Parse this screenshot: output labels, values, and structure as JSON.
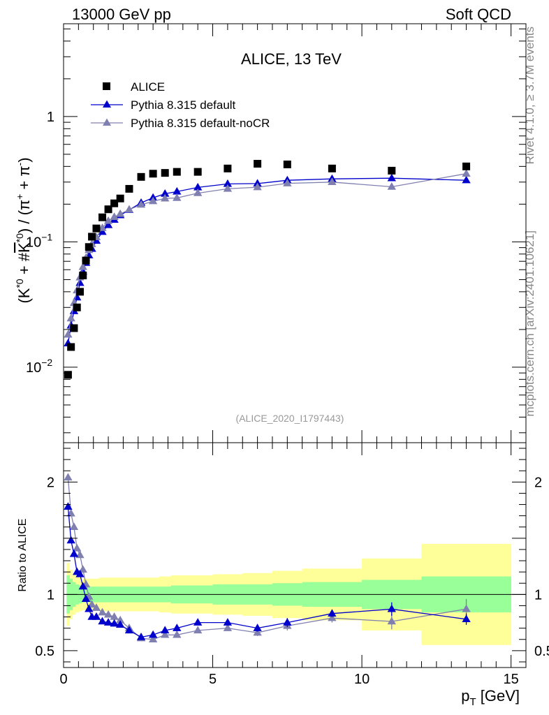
{
  "header": {
    "left": "13000 GeV pp",
    "right": "Soft QCD"
  },
  "side": {
    "top": "Rivet 4.1.0, ≥ 3.7M events",
    "bottom": "mcplots.cern.ch [arXiv:2401.10621]"
  },
  "colors": {
    "data": "#000000",
    "default": "#0000cc",
    "nocr": "#8080b0",
    "band_inner": "#99ff99",
    "band_outer": "#ffff99"
  },
  "chart_data": [
    {
      "type": "scatter",
      "title": "ALICE, 13 TeV",
      "watermark": "(ALICE_2020_I1797443)",
      "ylabel_parts": [
        "(K",
        "*0",
        " + #",
        "K",
        "*0",
        ") / (π",
        "+",
        " + π",
        "-",
        ")"
      ],
      "yscale": "log",
      "ylim": [
        0.0025,
        5.5
      ],
      "xlim": [
        0,
        15.5
      ],
      "yticks": [
        {
          "v": 1,
          "label": "1"
        },
        {
          "v": 0.1,
          "base": "10",
          "exp": "−1"
        },
        {
          "v": 0.01,
          "base": "10",
          "exp": "−2"
        }
      ],
      "legend": [
        {
          "name": "ALICE",
          "marker": "square"
        },
        {
          "name": "Pythia 8.315 default",
          "marker": "triangle"
        },
        {
          "name": "Pythia 8.315 default-noCR",
          "marker": "triangle"
        }
      ],
      "data_points": {
        "x": [
          0.15,
          0.25,
          0.35,
          0.45,
          0.55,
          0.65,
          0.75,
          0.85,
          0.95,
          1.1,
          1.3,
          1.5,
          1.7,
          1.9,
          2.2,
          2.6,
          3.0,
          3.4,
          3.8,
          4.5,
          5.5,
          6.5,
          7.5,
          9.0,
          11.0,
          13.5
        ],
        "y": [
          0.0087,
          0.0145,
          0.0205,
          0.03,
          0.04,
          0.054,
          0.071,
          0.091,
          0.11,
          0.128,
          0.157,
          0.182,
          0.203,
          0.222,
          0.265,
          0.33,
          0.35,
          0.355,
          0.362,
          0.362,
          0.385,
          0.42,
          0.415,
          0.385,
          0.37,
          0.4
        ]
      },
      "series": [
        {
          "name": "Pythia 8.315 default",
          "x": [
            0.15,
            0.25,
            0.35,
            0.45,
            0.55,
            0.65,
            0.75,
            0.85,
            0.95,
            1.1,
            1.3,
            1.5,
            1.7,
            1.9,
            2.2,
            2.6,
            3.0,
            3.4,
            3.8,
            4.5,
            5.5,
            6.5,
            7.5,
            9.0,
            11.0,
            13.5
          ],
          "y": [
            0.0155,
            0.0215,
            0.028,
            0.036,
            0.047,
            0.058,
            0.068,
            0.078,
            0.088,
            0.102,
            0.12,
            0.136,
            0.15,
            0.163,
            0.18,
            0.205,
            0.225,
            0.242,
            0.252,
            0.272,
            0.29,
            0.292,
            0.31,
            0.318,
            0.322,
            0.31
          ]
        },
        {
          "name": "Pythia 8.315 default-noCR",
          "x": [
            0.15,
            0.25,
            0.35,
            0.45,
            0.55,
            0.65,
            0.75,
            0.85,
            0.95,
            1.1,
            1.3,
            1.5,
            1.7,
            1.9,
            2.2,
            2.6,
            3.0,
            3.4,
            3.8,
            4.5,
            5.5,
            6.5,
            7.5,
            9.0,
            11.0,
            13.5
          ],
          "y": [
            0.0182,
            0.0245,
            0.0325,
            0.041,
            0.052,
            0.063,
            0.0745,
            0.086,
            0.096,
            0.109,
            0.129,
            0.147,
            0.158,
            0.167,
            0.181,
            0.198,
            0.211,
            0.222,
            0.224,
            0.245,
            0.265,
            0.273,
            0.293,
            0.3,
            0.275,
            0.35
          ]
        }
      ]
    },
    {
      "type": "scatter",
      "ylabel": "Ratio to ALICE",
      "xlabel_main": "p",
      "xlabel_sub": "T",
      "xlabel_unit": " [GeV]",
      "ylim": [
        0.35,
        2.35
      ],
      "xlim": [
        0,
        15.5
      ],
      "xticks": [
        0,
        5,
        10,
        15
      ],
      "yticks": [
        0.5,
        1,
        2
      ],
      "bands": {
        "edges": [
          0.1,
          0.2,
          0.3,
          0.4,
          0.5,
          0.6,
          0.7,
          0.8,
          0.9,
          1.0,
          1.2,
          1.4,
          1.6,
          1.8,
          2.0,
          2.4,
          2.8,
          3.2,
          3.6,
          4.0,
          5.0,
          6.0,
          7.0,
          8.0,
          10.0,
          12.0,
          15.0
        ],
        "inner": [
          0.17,
          0.14,
          0.11,
          0.09,
          0.08,
          0.07,
          0.07,
          0.07,
          0.07,
          0.07,
          0.07,
          0.07,
          0.07,
          0.07,
          0.07,
          0.07,
          0.07,
          0.07,
          0.08,
          0.08,
          0.09,
          0.09,
          0.1,
          0.11,
          0.13,
          0.16
        ],
        "outer": [
          0.28,
          0.22,
          0.18,
          0.16,
          0.15,
          0.14,
          0.14,
          0.14,
          0.14,
          0.14,
          0.15,
          0.15,
          0.15,
          0.15,
          0.15,
          0.15,
          0.15,
          0.16,
          0.17,
          0.17,
          0.18,
          0.19,
          0.21,
          0.23,
          0.32,
          0.45
        ]
      },
      "series": [
        {
          "name": "Pythia 8.315 default",
          "x": [
            0.15,
            0.25,
            0.35,
            0.45,
            0.55,
            0.65,
            0.75,
            0.85,
            0.95,
            1.1,
            1.3,
            1.5,
            1.7,
            1.9,
            2.2,
            2.6,
            3.0,
            3.4,
            3.8,
            4.5,
            5.5,
            6.5,
            7.5,
            9.0,
            11.0,
            13.5
          ],
          "y": [
            1.78,
            1.48,
            1.36,
            1.2,
            1.18,
            1.07,
            0.96,
            0.87,
            0.8,
            0.8,
            0.76,
            0.75,
            0.74,
            0.73,
            0.68,
            0.62,
            0.64,
            0.68,
            0.7,
            0.75,
            0.75,
            0.7,
            0.75,
            0.83,
            0.87,
            0.78
          ],
          "err": [
            0,
            0,
            0,
            0,
            0,
            0,
            0,
            0,
            0,
            0,
            0,
            0,
            0,
            0,
            0,
            0,
            0,
            0,
            0,
            0,
            0,
            0.03,
            0.04,
            0.03,
            0.06,
            0.05
          ]
        },
        {
          "name": "Pythia 8.315 default-noCR",
          "x": [
            0.15,
            0.25,
            0.35,
            0.45,
            0.55,
            0.65,
            0.75,
            0.85,
            0.95,
            1.1,
            1.3,
            1.5,
            1.7,
            1.9,
            2.2,
            2.6,
            3.0,
            3.4,
            3.8,
            4.5,
            5.5,
            6.5,
            7.5,
            9.0,
            11.0,
            13.5
          ],
          "y": [
            2.04,
            1.72,
            1.6,
            1.41,
            1.35,
            1.22,
            1.09,
            0.98,
            0.91,
            0.88,
            0.84,
            0.82,
            0.8,
            0.77,
            0.7,
            0.61,
            0.6,
            0.64,
            0.64,
            0.68,
            0.7,
            0.66,
            0.72,
            0.79,
            0.76,
            0.87
          ],
          "err": [
            0,
            0,
            0,
            0,
            0,
            0,
            0,
            0,
            0,
            0,
            0,
            0,
            0,
            0,
            0,
            0,
            0,
            0,
            0,
            0,
            0,
            0.03,
            0.04,
            0.04,
            0.07,
            0.09
          ]
        }
      ]
    }
  ]
}
